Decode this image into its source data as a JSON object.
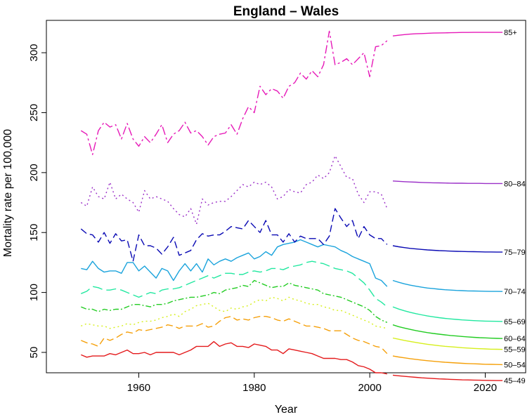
{
  "chart_data": {
    "type": "line",
    "title": "England – Wales",
    "xlabel": "Year",
    "ylabel": "Mortality rate per 100,000",
    "xlim": [
      1944,
      2027
    ],
    "ylim": [
      33,
      327
    ],
    "x_ticks": [
      "1960",
      "1980",
      "2000",
      "2020"
    ],
    "y_ticks": [
      "50",
      "100",
      "150",
      "200",
      "250",
      "300"
    ],
    "grid": false,
    "legend": "none",
    "observed_years": [
      1950,
      1951,
      1952,
      1953,
      1954,
      1955,
      1956,
      1957,
      1958,
      1959,
      1960,
      1961,
      1962,
      1963,
      1964,
      1965,
      1966,
      1967,
      1968,
      1969,
      1970,
      1971,
      1972,
      1973,
      1974,
      1975,
      1976,
      1977,
      1978,
      1979,
      1980,
      1981,
      1982,
      1983,
      1984,
      1985,
      1986,
      1987,
      1988,
      1989,
      1990,
      1991,
      1992,
      1993,
      1994,
      1995,
      1996,
      1997,
      1998,
      1999,
      2000,
      2001,
      2002,
      2003
    ],
    "forecast_years": [
      2004,
      2005,
      2006,
      2007,
      2008,
      2009,
      2010,
      2011,
      2012,
      2013,
      2014,
      2015,
      2016,
      2017,
      2018,
      2019,
      2020,
      2021,
      2022,
      2023
    ],
    "series": [
      {
        "name": "45–49",
        "color": "#e41a1c",
        "dash": "solid",
        "observed": [
          48,
          46,
          47,
          47,
          47,
          49,
          48,
          50,
          52,
          49,
          49,
          50,
          48,
          50,
          50,
          50,
          50,
          48,
          50,
          52,
          55,
          55,
          55,
          59,
          55,
          57,
          58,
          55,
          55,
          54,
          57,
          56,
          55,
          52,
          52,
          49,
          53,
          52,
          51,
          50,
          49,
          47,
          45,
          45,
          45,
          44,
          44,
          42,
          39,
          38,
          36,
          33,
          33,
          32
        ],
        "forecast": [
          31,
          30.5,
          30,
          29.6,
          29.2,
          28.8,
          28.5,
          28.2,
          27.9,
          27.7,
          27.5,
          27.3,
          27.1,
          27,
          26.9,
          26.8,
          26.7,
          26.6,
          26.5,
          26.5
        ]
      },
      {
        "name": "50–54",
        "color": "#f5a00a",
        "dash": "10,5",
        "observed": [
          60,
          58,
          57,
          55,
          62,
          60,
          62,
          65,
          67,
          66,
          69,
          68,
          69,
          70,
          71,
          73,
          72,
          70,
          72,
          72,
          72,
          74,
          71,
          72,
          76,
          79,
          80,
          77,
          78,
          77,
          79,
          80,
          80,
          79,
          77,
          76,
          78,
          76,
          74,
          72,
          72,
          71,
          70,
          68,
          68,
          68,
          65,
          62,
          60,
          59,
          57,
          55,
          54,
          49
        ],
        "forecast": [
          47,
          46.2,
          45.5,
          44.8,
          44.2,
          43.6,
          43.1,
          42.6,
          42.2,
          41.8,
          41.5,
          41.2,
          40.9,
          40.7,
          40.5,
          40.3,
          40.1,
          40,
          39.9,
          39.8
        ]
      },
      {
        "name": "55–59",
        "color": "#d6ef1c",
        "dash": "2,4",
        "observed": [
          72,
          74,
          73,
          72,
          72,
          70,
          71,
          72,
          74,
          73,
          75,
          76,
          76,
          77,
          79,
          80,
          82,
          80,
          84,
          86,
          89,
          90,
          91,
          88,
          85,
          84,
          87,
          86,
          88,
          89,
          92,
          94,
          93,
          96,
          95,
          93,
          96,
          94,
          93,
          91,
          90,
          90,
          88,
          87,
          85,
          85,
          83,
          81,
          79,
          77,
          75,
          72,
          71,
          70
        ],
        "forecast": [
          62,
          61,
          60,
          59.1,
          58.3,
          57.5,
          56.8,
          56.2,
          55.6,
          55.1,
          54.7,
          54.3,
          53.9,
          53.6,
          53.3,
          53.1,
          52.9,
          52.7,
          52.6,
          52.5
        ]
      },
      {
        "name": "60–64",
        "color": "#22cc22",
        "dash": "8,3,2,3",
        "observed": [
          88,
          86,
          86,
          84,
          86,
          85,
          86,
          86,
          88,
          90,
          90,
          89,
          88,
          90,
          90,
          91,
          93,
          94,
          95,
          96,
          96,
          97,
          98,
          100,
          99,
          102,
          103,
          104,
          106,
          105,
          110,
          108,
          106,
          104,
          105,
          105,
          108,
          106,
          105,
          104,
          103,
          102,
          99,
          98,
          97,
          96,
          94,
          92,
          90,
          88,
          85,
          80,
          77,
          75
        ],
        "forecast": [
          73,
          71.5,
          70.3,
          69.2,
          68.2,
          67.3,
          66.5,
          65.8,
          65.2,
          64.6,
          64.1,
          63.7,
          63.3,
          62.9,
          62.6,
          62.3,
          62.1,
          61.9,
          61.7,
          61.6
        ]
      },
      {
        "name": "65–69",
        "color": "#22e8a0",
        "dash": "14,6",
        "observed": [
          99,
          101,
          105,
          104,
          102,
          102,
          103,
          102,
          100,
          98,
          96,
          98,
          100,
          99,
          102,
          103,
          103,
          104,
          106,
          108,
          110,
          112,
          114,
          112,
          114,
          116,
          116,
          115,
          115,
          117,
          118,
          117,
          118,
          120,
          120,
          119,
          121,
          122,
          123,
          125,
          126,
          125,
          124,
          122,
          120,
          119,
          118,
          116,
          112,
          108,
          102,
          95,
          92,
          88
        ],
        "forecast": [
          88,
          86.2,
          84.7,
          83.4,
          82.3,
          81.3,
          80.4,
          79.7,
          79,
          78.4,
          77.9,
          77.5,
          77.1,
          76.8,
          76.5,
          76.3,
          76.1,
          76,
          75.9,
          75.8
        ]
      },
      {
        "name": "70–74",
        "color": "#1aa3dc",
        "dash": "solid",
        "observed": [
          120,
          119,
          126,
          120,
          117,
          118,
          118,
          116,
          125,
          125,
          118,
          122,
          117,
          112,
          120,
          118,
          110,
          118,
          124,
          118,
          124,
          117,
          128,
          123,
          126,
          128,
          126,
          129,
          131,
          133,
          128,
          130,
          134,
          131,
          138,
          140,
          141,
          142,
          144,
          142,
          140,
          138,
          140,
          139,
          138,
          135,
          133,
          130,
          128,
          126,
          124,
          112,
          110,
          105
        ],
        "forecast": [
          110,
          108.5,
          107.2,
          106.1,
          105.2,
          104.4,
          103.7,
          103.2,
          102.7,
          102.3,
          102,
          101.7,
          101.5,
          101.3,
          101.2,
          101.1,
          101,
          100.9,
          100.9,
          100.8
        ]
      },
      {
        "name": "75–79",
        "color": "#0a0ab4",
        "dash": "10,5",
        "observed": [
          153,
          149,
          148,
          142,
          150,
          141,
          149,
          143,
          144,
          126,
          148,
          139,
          139,
          137,
          132,
          138,
          146,
          131,
          133,
          135,
          144,
          149,
          147,
          148,
          148,
          151,
          155,
          154,
          153,
          160,
          155,
          150,
          160,
          148,
          148,
          142,
          149,
          142,
          147,
          145,
          145,
          145,
          140,
          147,
          170,
          162,
          155,
          160,
          145,
          155,
          148,
          145,
          145,
          140
        ],
        "forecast": [
          139,
          138.1,
          137.4,
          136.8,
          136.3,
          135.9,
          135.5,
          135.2,
          134.9,
          134.7,
          134.5,
          134.3,
          134.2,
          134.1,
          134,
          133.9,
          133.8,
          133.8,
          133.7,
          133.7
        ]
      },
      {
        "name": "80–84",
        "color": "#9b30c8",
        "dash": "2,4",
        "observed": [
          175,
          172,
          188,
          180,
          178,
          192,
          178,
          182,
          178,
          175,
          167,
          185,
          178,
          180,
          178,
          176,
          170,
          165,
          163,
          170,
          157,
          178,
          173,
          175,
          176,
          176,
          180,
          185,
          190,
          188,
          192,
          190,
          192,
          188,
          178,
          180,
          186,
          184,
          183,
          190,
          192,
          198,
          195,
          200,
          214,
          205,
          196,
          195,
          182,
          175,
          184,
          184,
          182,
          170
        ],
        "forecast": [
          193,
          192.7,
          192.4,
          192.2,
          192,
          191.8,
          191.6,
          191.5,
          191.4,
          191.3,
          191.2,
          191.1,
          191.1,
          191,
          191,
          191,
          190.9,
          190.9,
          190.9,
          190.9
        ]
      },
      {
        "name": "85+",
        "color": "#e619b8",
        "dash": "12,4,3,4",
        "observed": [
          235,
          232,
          215,
          235,
          242,
          238,
          240,
          228,
          241,
          228,
          222,
          230,
          225,
          232,
          240,
          225,
          232,
          235,
          242,
          233,
          235,
          230,
          223,
          230,
          232,
          233,
          240,
          232,
          245,
          255,
          250,
          272,
          265,
          270,
          268,
          262,
          272,
          275,
          283,
          278,
          285,
          280,
          290,
          318,
          290,
          292,
          295,
          290,
          295,
          300,
          280,
          305,
          306,
          310
        ],
        "forecast": [
          314,
          314.6,
          315.1,
          315.5,
          315.8,
          316,
          316.2,
          316.4,
          316.5,
          316.6,
          316.7,
          316.8,
          316.9,
          316.9,
          317,
          317,
          317,
          317,
          317,
          317
        ]
      }
    ]
  }
}
